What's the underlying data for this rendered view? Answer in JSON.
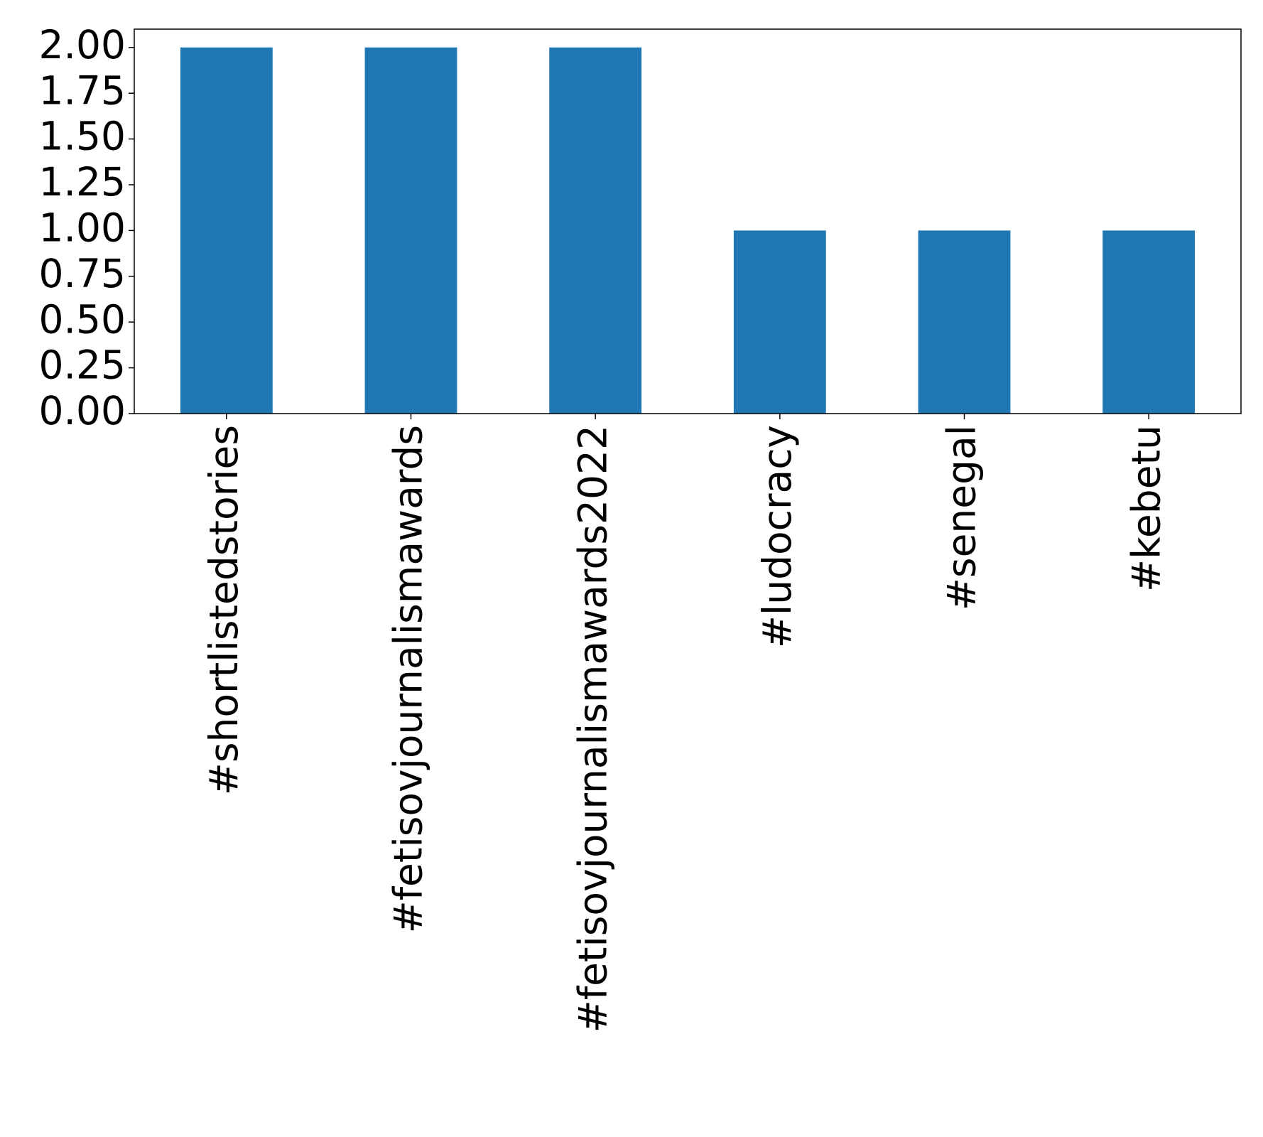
{
  "chart_data": {
    "type": "bar",
    "categories": [
      "#shortlistedstories",
      "#fetisovjournalismawards",
      "#fetisovjournalismawards2022",
      "#ludocracy",
      "#senegal",
      "#kebetu"
    ],
    "values": [
      2,
      2,
      2,
      1,
      1,
      1
    ],
    "color": "#1f77b4",
    "ylim": [
      0,
      2.1
    ],
    "yticks": [
      {
        "value": 0,
        "label": "0.00"
      },
      {
        "value": 0.25,
        "label": "0.25"
      },
      {
        "value": 0.5,
        "label": "0.50"
      },
      {
        "value": 0.75,
        "label": "0.75"
      },
      {
        "value": 1,
        "label": "1.00"
      },
      {
        "value": 1.25,
        "label": "1.25"
      },
      {
        "value": 1.5,
        "label": "1.50"
      },
      {
        "value": 1.75,
        "label": "1.75"
      },
      {
        "value": 2,
        "label": "2.00"
      }
    ],
    "grid": false
  }
}
